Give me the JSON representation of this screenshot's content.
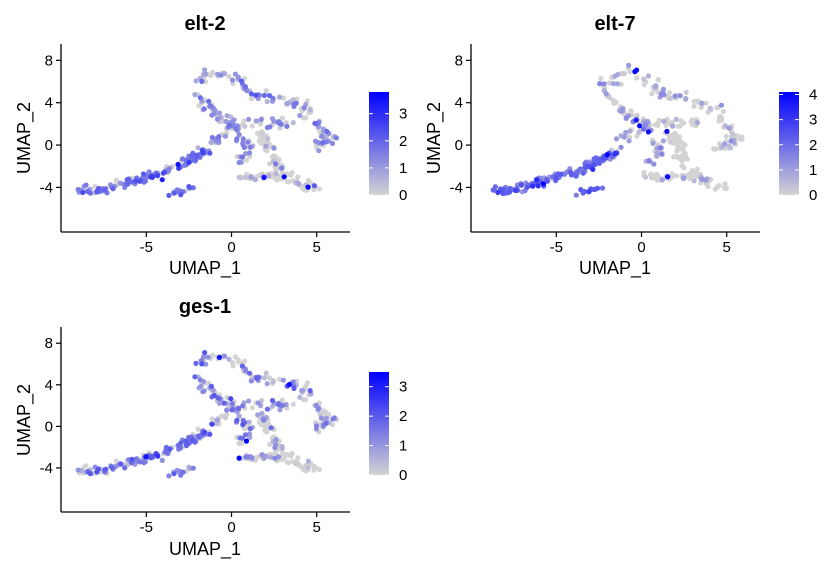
{
  "chart_data": [
    {
      "type": "scatter",
      "title": "elt-2",
      "xlabel": "UMAP_1",
      "ylabel": "UMAP_2",
      "xlim": [
        -9.3,
        6.6
      ],
      "ylim": [
        -6.7,
        8.6
      ],
      "xticks": [
        -5,
        0,
        5
      ],
      "yticks": [
        -4,
        0,
        4,
        8
      ],
      "color_scale": {
        "low": "#d3d3d3",
        "high": "#0000ff",
        "min": 0,
        "max": 3.8,
        "ticks": [
          0,
          1,
          2,
          3
        ]
      },
      "legend_position": "right",
      "seed": 11
    },
    {
      "type": "scatter",
      "title": "elt-7",
      "xlabel": "UMAP_1",
      "ylabel": "UMAP_2",
      "xlim": [
        -9.3,
        6.6
      ],
      "ylim": [
        -6.7,
        8.6
      ],
      "xticks": [
        -5,
        0,
        5
      ],
      "yticks": [
        -4,
        0,
        4,
        8
      ],
      "color_scale": {
        "low": "#d3d3d3",
        "high": "#0000ff",
        "min": 0,
        "max": 4.1,
        "ticks": [
          0,
          1,
          2,
          3,
          4
        ]
      },
      "legend_position": "right",
      "seed": 23
    },
    {
      "type": "scatter",
      "title": "ges-1",
      "xlabel": "UMAP_1",
      "ylabel": "UMAP_2",
      "xlim": [
        -9.3,
        6.6
      ],
      "ylim": [
        -6.7,
        8.6
      ],
      "xticks": [
        -5,
        0,
        5
      ],
      "yticks": [
        -4,
        0,
        4,
        8
      ],
      "color_scale": {
        "low": "#d3d3d3",
        "high": "#0000ff",
        "min": 0,
        "max": 3.5,
        "ticks": [
          0,
          1,
          2,
          3
        ]
      },
      "legend_position": "right",
      "seed": 37
    }
  ]
}
